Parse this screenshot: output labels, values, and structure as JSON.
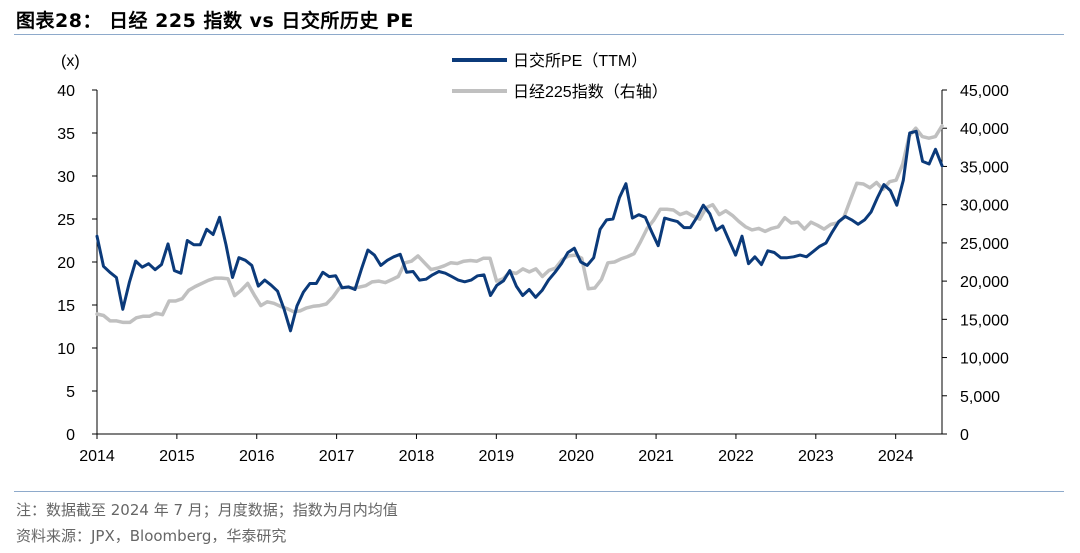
{
  "title": "图表28： 日经 225 指数 vs 日交所历史 PE",
  "notes": {
    "line1": "注：数据截至 2024 年 7 月；月度数据；指数为月内均值",
    "line2": "资料来源：JPX，Bloomberg，华泰研究"
  },
  "colors": {
    "pe": "#0b3a7a",
    "nikkei": "#c0c0c0",
    "rule": "#8eaacb"
  },
  "chart_data": {
    "type": "line",
    "left_axis_unit": "(x)",
    "y_left": {
      "range": [
        0,
        40
      ],
      "ticks": [
        "0",
        "5",
        "10",
        "15",
        "20",
        "25",
        "30",
        "35",
        "40"
      ]
    },
    "y_right": {
      "range": [
        0,
        45000
      ],
      "ticks": [
        "0",
        "5,000",
        "10,000",
        "15,000",
        "20,000",
        "25,000",
        "30,000",
        "35,000",
        "40,000",
        "45,000"
      ]
    },
    "x_ticks": [
      "2014",
      "2015",
      "2016",
      "2017",
      "2018",
      "2019",
      "2020",
      "2021",
      "2022",
      "2023",
      "2024"
    ],
    "legend": [
      "日交所PE（TTM）",
      "日经225指数（右轴）"
    ],
    "series": [
      {
        "name": "日交所PE（TTM）",
        "axis": "left",
        "values": [
          23.0,
          19.5,
          18.8,
          18.2,
          14.5,
          17.6,
          20.1,
          19.4,
          19.8,
          19.1,
          19.7,
          22.1,
          19.0,
          18.7,
          22.5,
          22.0,
          22.0,
          23.8,
          23.2,
          25.2,
          22.0,
          18.2,
          20.5,
          20.2,
          19.6,
          17.2,
          17.9,
          17.3,
          16.6,
          14.5,
          12.0,
          14.9,
          16.5,
          17.5,
          17.5,
          18.8,
          18.3,
          18.4,
          17.0,
          17.1,
          16.8,
          19.2,
          21.4,
          20.8,
          19.6,
          20.2,
          20.6,
          20.9,
          18.8,
          18.9,
          17.9,
          18.0,
          18.5,
          18.9,
          18.7,
          18.3,
          17.9,
          17.7,
          17.9,
          18.4,
          18.5,
          16.1,
          17.3,
          17.8,
          19.0,
          17.2,
          16.1,
          16.8,
          15.9,
          16.7,
          17.9,
          18.8,
          19.8,
          21.1,
          21.6,
          20.0,
          19.6,
          20.5,
          23.8,
          24.9,
          25.0,
          27.5,
          29.1,
          25.1,
          25.5,
          25.2,
          23.5,
          21.9,
          25.1,
          24.9,
          24.7,
          24.0,
          24.0,
          25.2,
          26.6,
          25.6,
          23.7,
          24.2,
          22.5,
          20.8,
          23.0,
          19.8,
          20.6,
          19.7,
          21.3,
          21.1,
          20.5,
          20.5,
          20.6,
          20.8,
          20.6,
          21.2,
          21.8,
          22.2,
          23.5,
          24.7,
          25.3,
          24.9,
          24.4,
          24.9,
          25.8,
          27.5,
          29.0,
          28.3,
          26.6,
          29.5,
          35.0,
          35.2,
          31.7,
          31.4,
          33.1,
          31.2
        ]
      },
      {
        "name": "日经225指数（右轴）",
        "axis": "right",
        "values": [
          15700,
          15500,
          14800,
          14800,
          14600,
          14600,
          15200,
          15400,
          15400,
          15800,
          15600,
          17400,
          17400,
          17700,
          18800,
          19300,
          19700,
          20100,
          20400,
          20400,
          20300,
          18100,
          18800,
          19700,
          18200,
          16800,
          17300,
          17100,
          16700,
          16400,
          16000,
          16100,
          16500,
          16700,
          16800,
          17000,
          17900,
          19100,
          19200,
          19100,
          19200,
          19400,
          19900,
          20000,
          19800,
          20200,
          20600,
          22400,
          22600,
          23300,
          22400,
          21500,
          21700,
          22000,
          22400,
          22300,
          22600,
          22700,
          22600,
          23000,
          23000,
          20000,
          20300,
          21200,
          21000,
          21600,
          21200,
          21600,
          20600,
          21400,
          21700,
          22800,
          23300,
          23400,
          23000,
          19000,
          19100,
          20200,
          22400,
          22500,
          22900,
          23200,
          23600,
          25200,
          26900,
          28000,
          29400,
          29400,
          29300,
          28700,
          29000,
          28500,
          28100,
          29600,
          30000,
          28700,
          29200,
          28600,
          27800,
          27100,
          26700,
          26900,
          26500,
          26900,
          27100,
          28300,
          27600,
          27700,
          26800,
          27700,
          27300,
          26800,
          27400,
          27600,
          28300,
          30600,
          32800,
          32700,
          32200,
          32900,
          32000,
          33000,
          33200,
          35300,
          39000,
          40000,
          38900,
          38700,
          38900,
          40300
        ]
      }
    ]
  }
}
